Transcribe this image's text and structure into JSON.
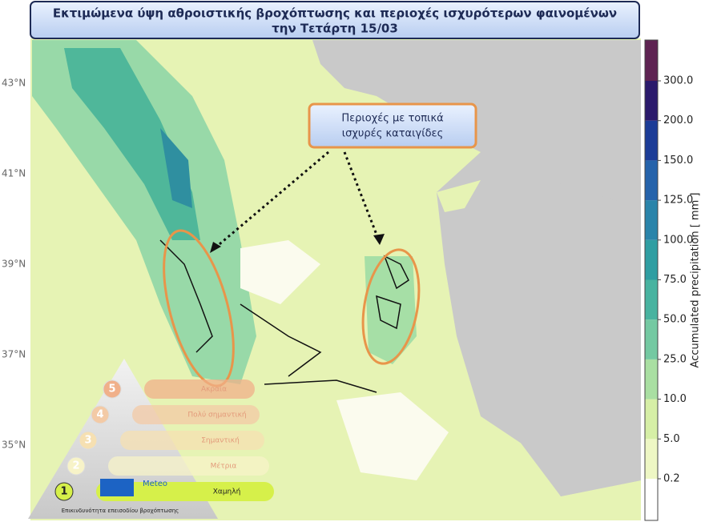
{
  "header": {
    "title_line1": "Εκτιμώμενα ύψη αθροιστικής βροχόπτωσης και περιοχές ισχυρότερων φαινομένων",
    "title_line2": "την Τετάρτη 15/03"
  },
  "callout": {
    "line1": "Περιοχές με τοπικά",
    "line2": "ισχυρές καταιγίδες"
  },
  "latitude_labels": [
    "43°N",
    "41°N",
    "39°N",
    "37°N",
    "35°N"
  ],
  "colorbar": {
    "label": "Accumulated precipitation [ mm ]",
    "colors": [
      "#ffffff",
      "#eef7c4",
      "#d6efa6",
      "#a9dfa2",
      "#74c9a2",
      "#48b3a0",
      "#2f9ea2",
      "#2a84aa",
      "#2563ab",
      "#1c3c97",
      "#2b1a6c",
      "#5e2352"
    ],
    "ticks": [
      {
        "value": 0.2,
        "label": "0.2"
      },
      {
        "value": 5,
        "label": "5.0"
      },
      {
        "value": 10,
        "label": "10.0"
      },
      {
        "value": 25,
        "label": "25.0"
      },
      {
        "value": 50,
        "label": "50.0"
      },
      {
        "value": 75,
        "label": "75.0"
      },
      {
        "value": 100,
        "label": "100.0"
      },
      {
        "value": 125,
        "label": "125.0"
      },
      {
        "value": 150,
        "label": "150.0"
      },
      {
        "value": 200,
        "label": "200.0"
      },
      {
        "value": 300,
        "label": "300.0"
      }
    ]
  },
  "severity": {
    "caption": "Επικινδυνότητα επεισοδίου βροχόπτωσης",
    "logo": "Meteo",
    "levels": [
      {
        "number": 1,
        "label": "Χαμηλή"
      },
      {
        "number": 2,
        "label": "Μέτρια"
      },
      {
        "number": 3,
        "label": "Σημαντική"
      },
      {
        "number": 4,
        "label": "Πολύ σημαντική"
      },
      {
        "number": 5,
        "label": "Ακραία"
      }
    ]
  }
}
